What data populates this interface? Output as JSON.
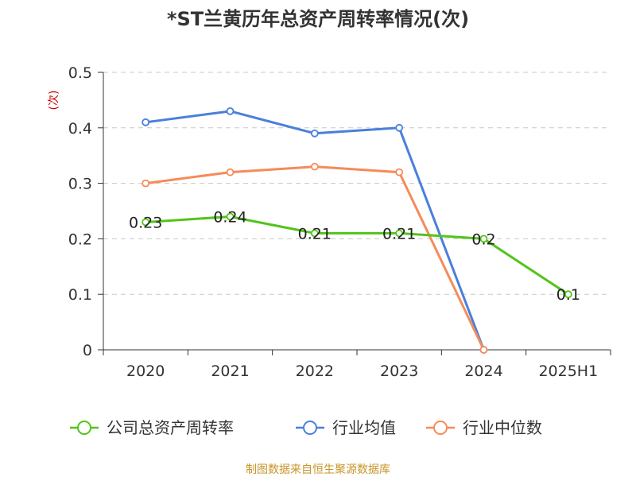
{
  "chart_data": {
    "type": "line",
    "title": "*ST兰黄历年总资产周转率情况(次)",
    "ylabel": "(次)",
    "xlabel": "",
    "categories": [
      "2020",
      "2021",
      "2022",
      "2023",
      "2024",
      "2025H1"
    ],
    "ylim": [
      0,
      0.5
    ],
    "yticks": [
      "0",
      "0.1",
      "0.2",
      "0.3",
      "0.4",
      "0.5"
    ],
    "grid": true,
    "legend_position": "bottom",
    "series": [
      {
        "name": "公司总资产周转率",
        "color": "#52c41a",
        "values": [
          0.23,
          0.24,
          0.21,
          0.21,
          0.2,
          0.1
        ],
        "labels": [
          "0.23",
          "0.24",
          "0.21",
          "0.21",
          "0.2",
          "0.1"
        ]
      },
      {
        "name": "行业均值",
        "color": "#4a7fdc",
        "values": [
          0.41,
          0.43,
          0.39,
          0.4,
          0,
          null
        ]
      },
      {
        "name": "行业中位数",
        "color": "#f58b5a",
        "values": [
          0.3,
          0.32,
          0.33,
          0.32,
          0,
          null
        ]
      }
    ]
  },
  "source": "制图数据来自恒生聚源数据库"
}
